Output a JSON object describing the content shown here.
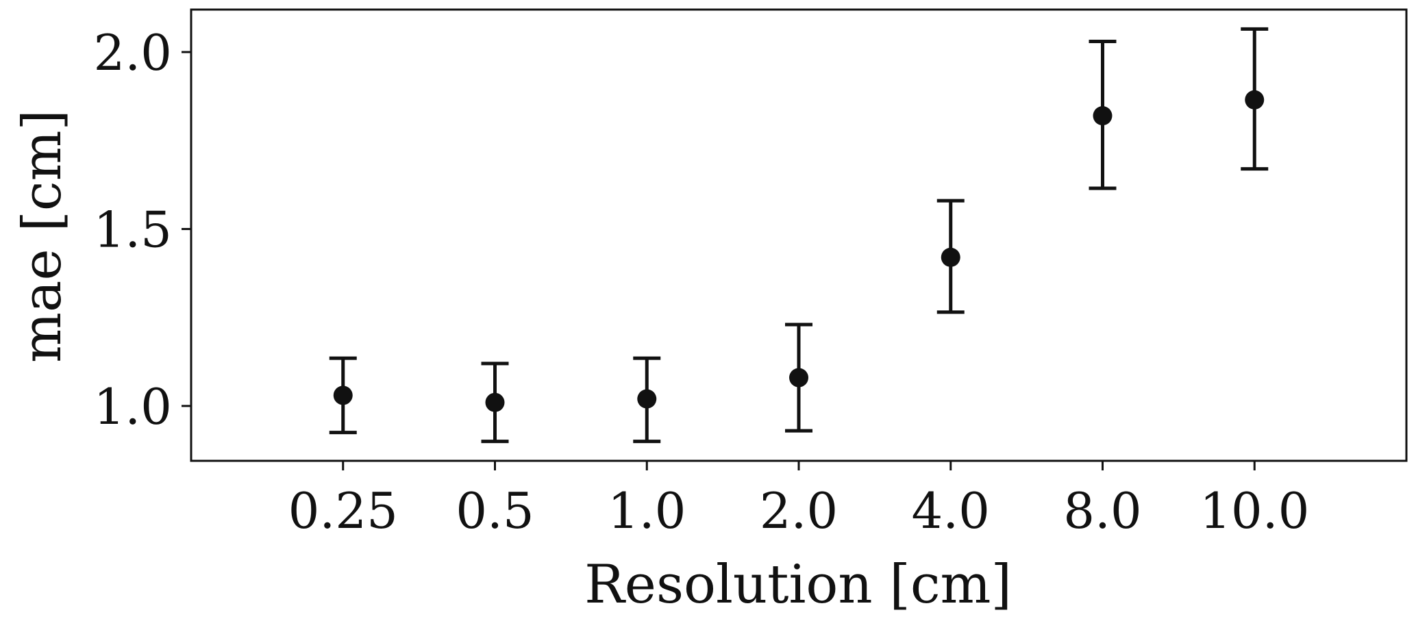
{
  "chart_data": {
    "type": "scatter",
    "xlabel": "Resolution [cm]",
    "ylabel": "mae [cm]",
    "categories": [
      "0.25",
      "0.5",
      "1.0",
      "2.0",
      "4.0",
      "8.0",
      "10.0"
    ],
    "series": [
      {
        "values": [
          1.03,
          1.01,
          1.02,
          1.08,
          1.42,
          1.82,
          1.865
        ],
        "error_low": [
          0.925,
          0.9,
          0.9,
          0.93,
          1.265,
          1.615,
          1.67
        ],
        "error_high": [
          1.135,
          1.12,
          1.135,
          1.23,
          1.58,
          2.03,
          2.065
        ]
      }
    ],
    "y_ticks": [
      1.0,
      1.5,
      2.0
    ],
    "y_tick_labels": [
      "1.0",
      "1.5",
      "2.0"
    ],
    "ylim": [
      0.845,
      2.12
    ],
    "grid": false,
    "marker_color": "#111111"
  }
}
